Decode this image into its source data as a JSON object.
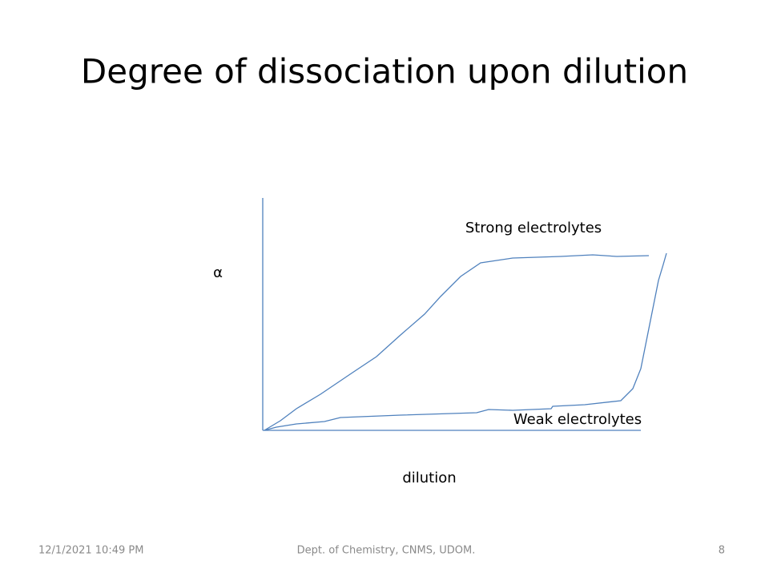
{
  "title": "Degree of dissociation upon dilution",
  "diagram": {
    "y_label": "α",
    "x_label": "dilution",
    "upper_curve_label": "Strong electrolytes",
    "lower_curve_label": "Weak electrolytes"
  },
  "footer": {
    "date": "12/1/2021 10:49 PM",
    "department": "Dept. of Chemistry, CNMS, UDOM.",
    "page": "8"
  }
}
